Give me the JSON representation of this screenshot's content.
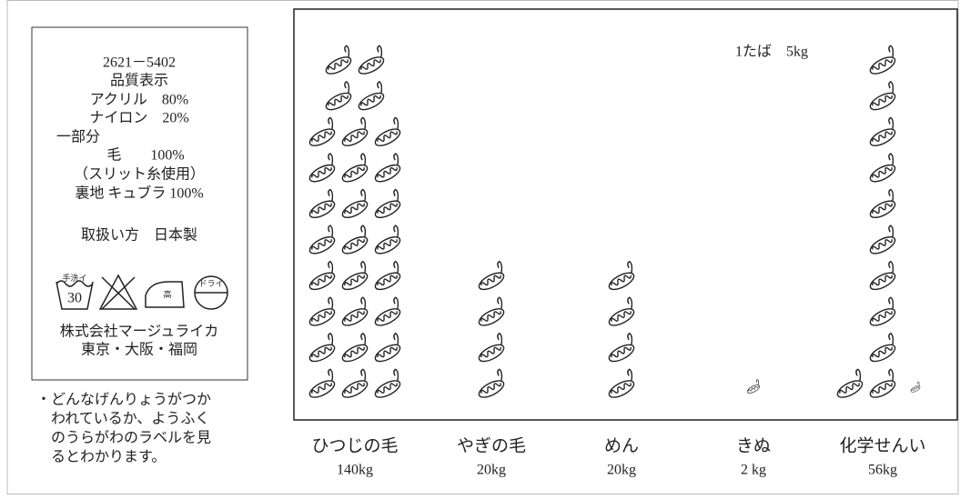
{
  "label_card": {
    "code": "2621－5402",
    "heading": "品質表示",
    "lines": [
      "アクリル　80%",
      "ナイロン　20%",
      "一部分",
      "毛　　100%",
      "（スリット糸使用）",
      "裏地 キュブラ 100%"
    ],
    "care": "取扱い方　日本製",
    "symbols": [
      "手洗イ",
      "30",
      "高",
      "ドライ"
    ],
    "company": [
      "株式会社マージュライカ",
      "東京・大阪・福岡"
    ]
  },
  "note": [
    "・どんなげんりょうがつか",
    "われているか、ようふく",
    "のうらがわのラベルを見",
    "るとわかります。"
  ],
  "chart_data": {
    "type": "pictograph",
    "unit": {
      "value": 5,
      "label": "1たば　5kg"
    },
    "categories": [
      "ひつじの毛",
      "やぎの毛",
      "めん",
      "きぬ",
      "化学せんい"
    ],
    "values": [
      140,
      20,
      20,
      2,
      56
    ],
    "value_labels": [
      "140kg",
      "20kg",
      "20kg",
      "2 kg",
      "56kg"
    ],
    "color": "#222"
  }
}
